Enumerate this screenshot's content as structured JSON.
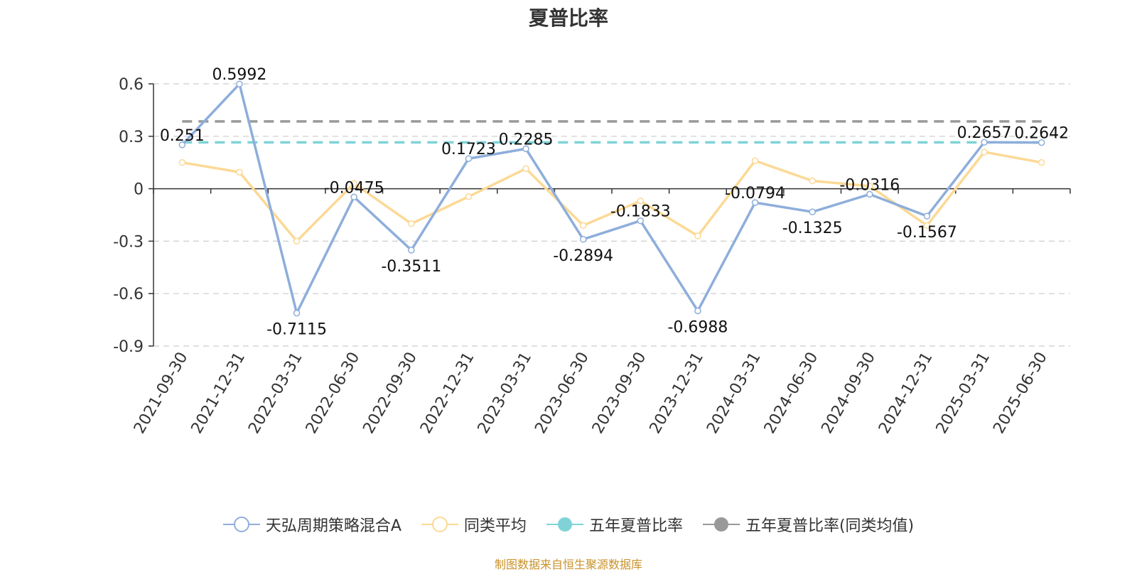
{
  "title": "夏普比率",
  "source_note": "制图数据来自恒生聚源数据库",
  "colors": {
    "fund": "#8eaedb",
    "peer": "#fcd995",
    "five_year": "#7fd3d6",
    "five_year_peer": "#999999",
    "grid": "#cccccc",
    "axis": "#333333"
  },
  "legend": [
    {
      "label": "天弘周期策略混合A",
      "color": "#8eaedb",
      "style": "hollow"
    },
    {
      "label": "同类平均",
      "color": "#fcd995",
      "style": "hollow"
    },
    {
      "label": "五年夏普比率",
      "color": "#7fd3d6",
      "style": "filled"
    },
    {
      "label": "五年夏普比率(同类均值)",
      "color": "#999999",
      "style": "filled"
    }
  ],
  "chart_data": {
    "type": "line",
    "title": "夏普比率",
    "categories": [
      "2021-09-30",
      "2021-12-31",
      "2022-03-31",
      "2022-06-30",
      "2022-09-30",
      "2022-12-31",
      "2023-03-31",
      "2023-06-30",
      "2023-09-30",
      "2023-12-31",
      "2024-03-31",
      "2024-06-30",
      "2024-09-30",
      "2024-12-31",
      "2025-03-31",
      "2025-06-30"
    ],
    "y_ticks": [
      "0.6",
      "0.3",
      "0",
      "-0.3",
      "-0.6",
      "-0.9"
    ],
    "ylim": [
      -0.9,
      0.6
    ],
    "grid": true,
    "legend_position": "bottom",
    "series": [
      {
        "name": "天弘周期策略混合A",
        "values": [
          0.251,
          0.5992,
          -0.7115,
          -0.0475,
          -0.3511,
          0.1723,
          0.2285,
          -0.2894,
          -0.1833,
          -0.6988,
          -0.0794,
          -0.1325,
          -0.0316,
          -0.1567,
          0.2657,
          0.2642
        ],
        "labels": [
          "0.251",
          "0.5992",
          "-0.7115",
          "-0.0475",
          "-0.3511",
          "0.1723",
          "0.2285",
          "-0.2894",
          "-0.1833",
          "-0.6988",
          "-0.0794",
          "-0.1325",
          "-0.0316",
          "-0.1567",
          "0.2657",
          "0.2642"
        ]
      },
      {
        "name": "同类平均",
        "values": [
          0.15,
          0.095,
          -0.3,
          0.03,
          -0.2,
          -0.045,
          0.115,
          -0.21,
          -0.07,
          -0.27,
          0.16,
          0.045,
          0.015,
          -0.21,
          0.21,
          0.15
        ]
      },
      {
        "name": "五年夏普比率",
        "constant": 0.265
      },
      {
        "name": "五年夏普比率(同类均值)",
        "constant": 0.385
      }
    ]
  }
}
